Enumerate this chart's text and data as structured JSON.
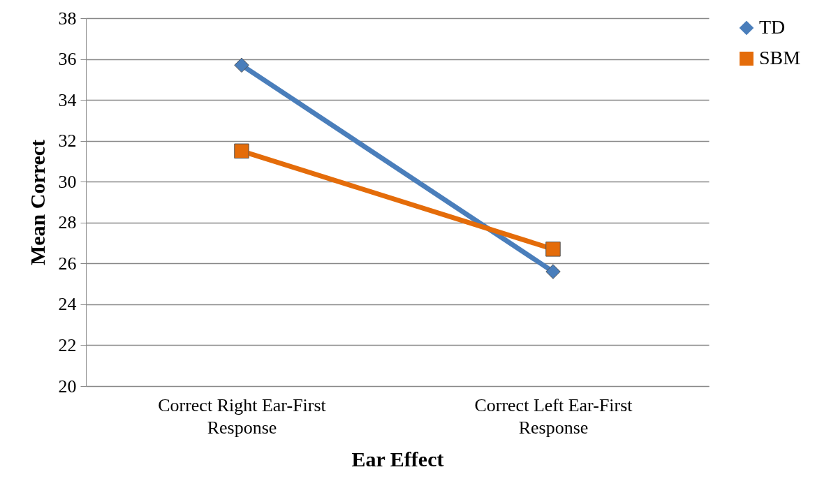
{
  "chart_data": {
    "type": "line",
    "xlabel": "Ear Effect",
    "ylabel": "Mean Correct",
    "categories": [
      "Correct Right Ear-First Response",
      "Correct Left Ear-First Response"
    ],
    "series": [
      {
        "name": "TD",
        "color": "#4a7ebb",
        "marker": "diamond",
        "values": [
          35.7,
          25.6
        ]
      },
      {
        "name": "SBM",
        "color": "#e46c0a",
        "marker": "square",
        "values": [
          31.5,
          26.7
        ]
      }
    ],
    "ylim": [
      20,
      38
    ],
    "yticks": [
      20,
      22,
      24,
      26,
      28,
      30,
      32,
      34,
      36,
      38
    ],
    "grid": "y",
    "legend": "right"
  }
}
